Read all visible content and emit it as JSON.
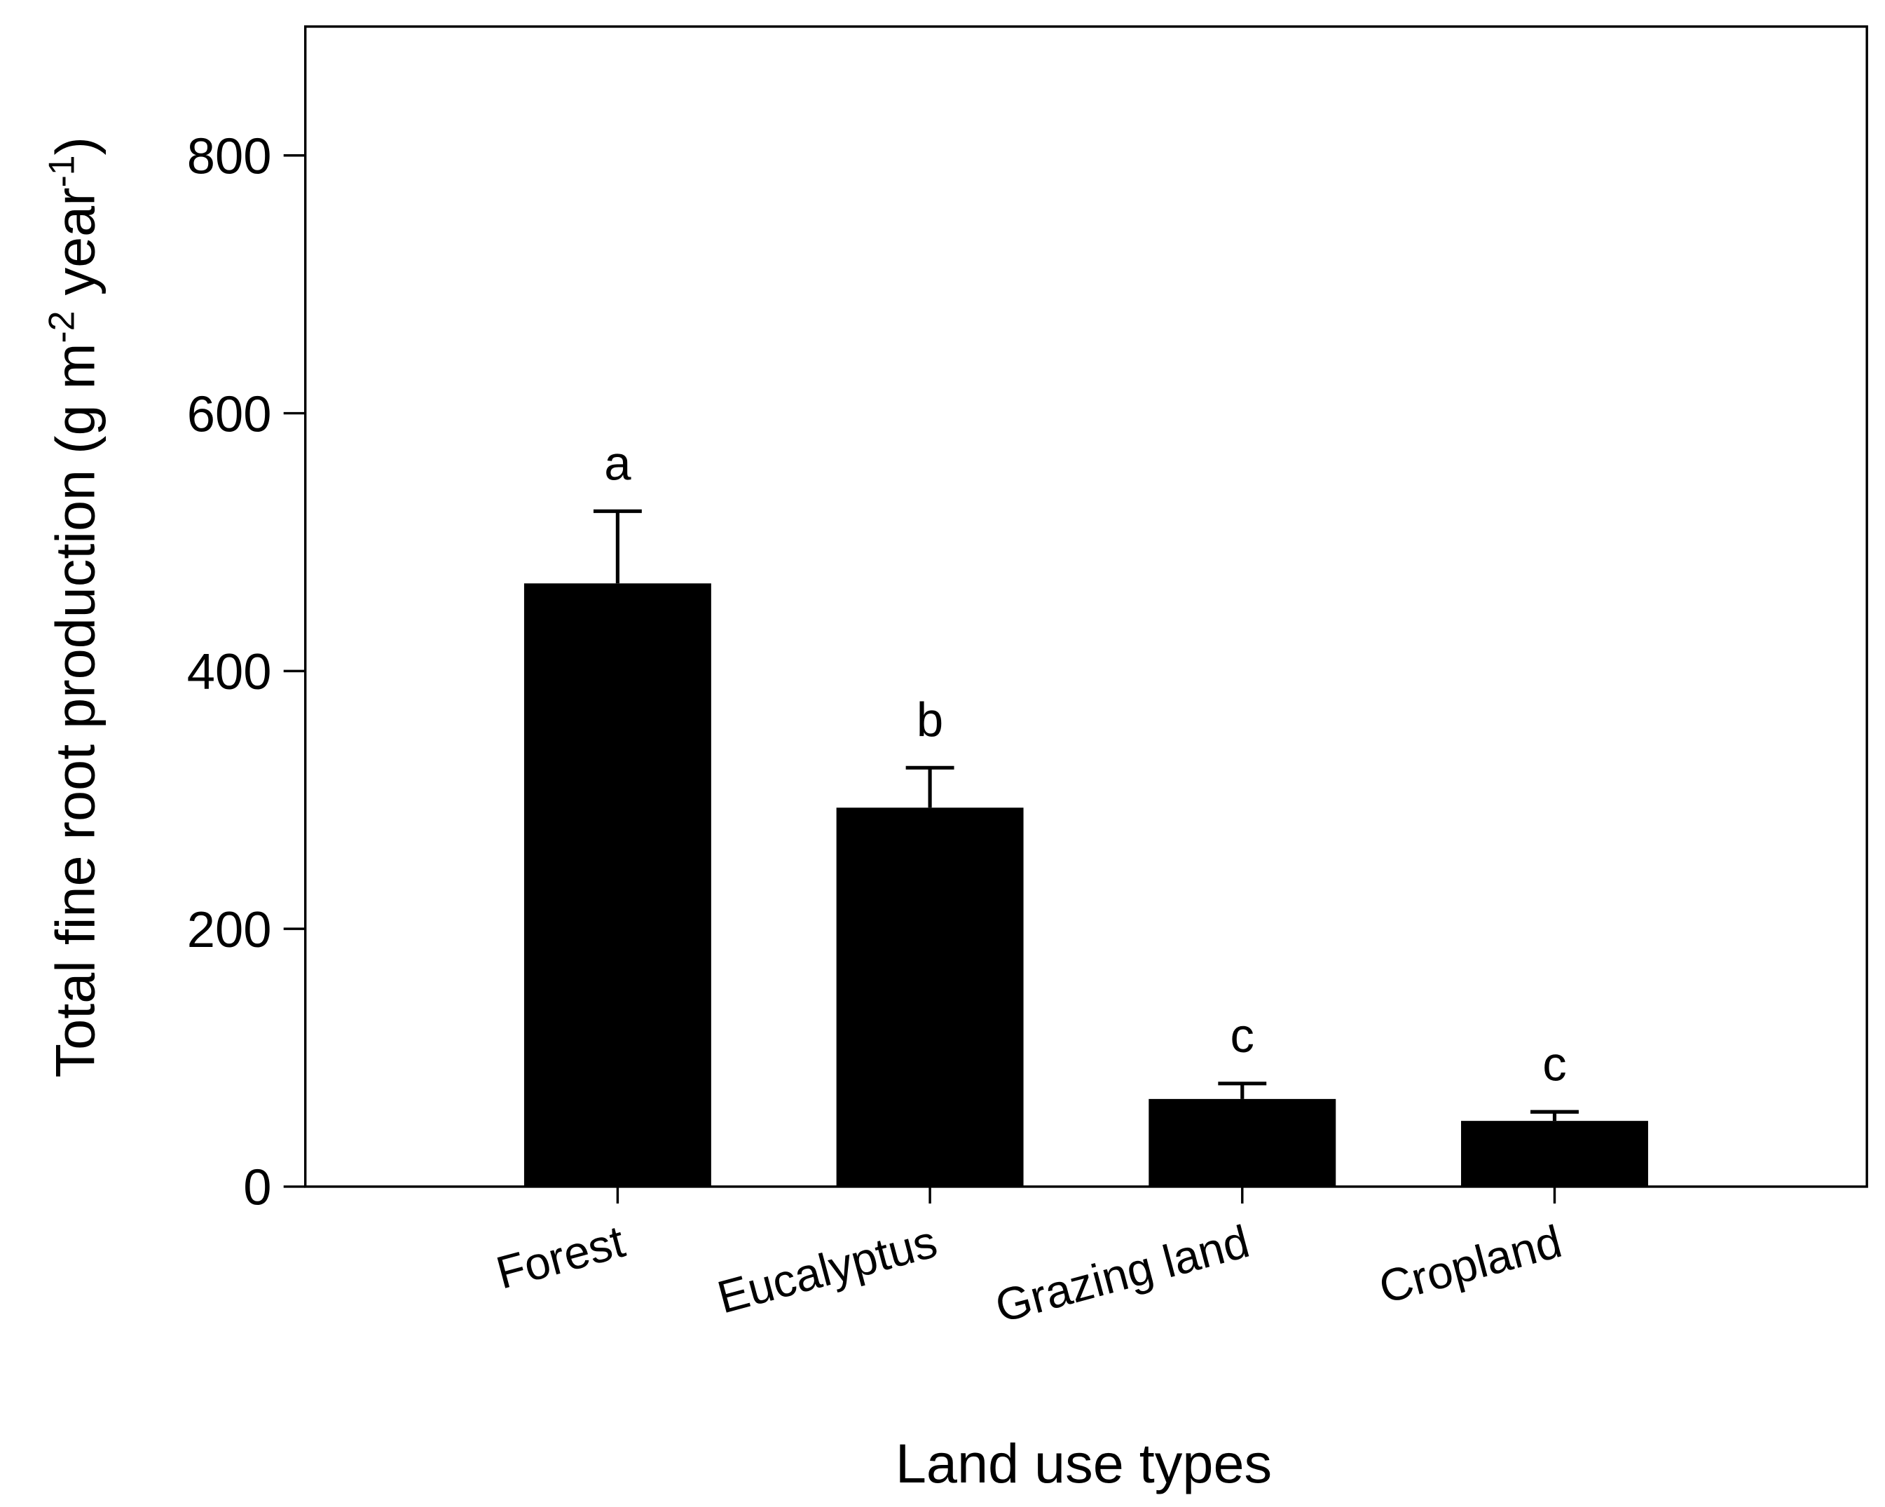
{
  "chart_data": {
    "type": "bar",
    "xlabel": "Land use types",
    "ylabel": {
      "parts": [
        "Total fine root production (g m",
        "-2",
        " year",
        "-1",
        ")"
      ]
    },
    "categories": [
      "Forest",
      "Eucalyptus",
      "Grazing land",
      "Cropland"
    ],
    "values": [
      468,
      294,
      68,
      51
    ],
    "errors": [
      56,
      31,
      12,
      7
    ],
    "annotations": [
      "a",
      "b",
      "c",
      "c"
    ],
    "color": "#000000",
    "ylim": [
      0,
      900
    ],
    "yticks": [
      0,
      200,
      400,
      600,
      800
    ]
  }
}
